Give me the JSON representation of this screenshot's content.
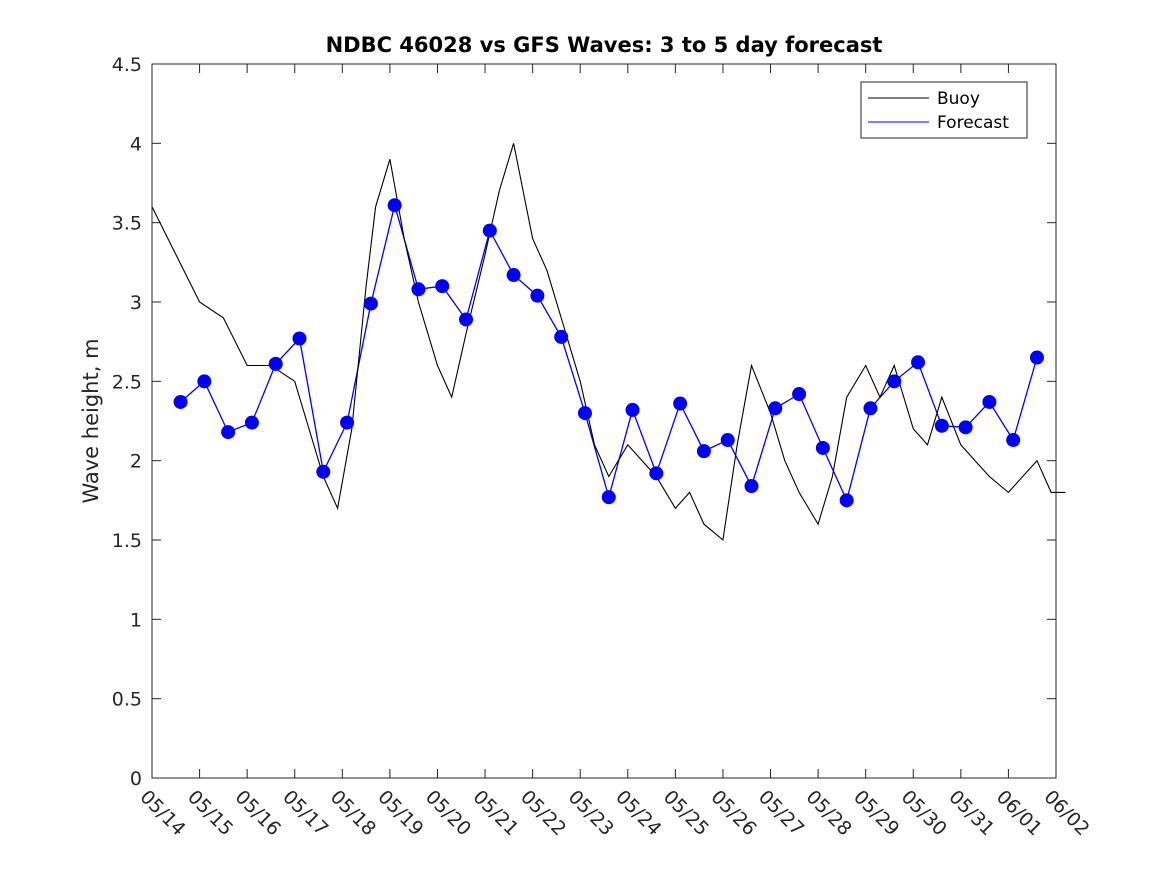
{
  "chart_data": {
    "type": "line",
    "title": "NDBC 46028 vs GFS Waves: 3 to 5 day forecast",
    "xlabel": "",
    "ylabel": "Wave height, m",
    "xlim": [
      "05/14",
      "06/02"
    ],
    "ylim": [
      0,
      4.5
    ],
    "yticks": [
      "0",
      "0.5",
      "1",
      "1.5",
      "2",
      "2.5",
      "3",
      "3.5",
      "4",
      "4.5"
    ],
    "xticks": [
      "05/14",
      "05/15",
      "05/16",
      "05/17",
      "05/18",
      "05/19",
      "05/20",
      "05/21",
      "05/22",
      "05/23",
      "05/24",
      "05/25",
      "05/26",
      "05/27",
      "05/28",
      "05/29",
      "05/30",
      "05/31",
      "06/01",
      "06/02"
    ],
    "grid": false,
    "legend_placement": "top-right",
    "legend": [
      "Buoy",
      "Forecast"
    ],
    "colors": {
      "buoy": "#000000",
      "forecast": "#0000ff",
      "axes": "#262626"
    },
    "series": [
      {
        "name": "Buoy",
        "x": [
          0,
          0.5,
          1,
          1.5,
          2,
          2.5,
          3,
          3.3,
          3.6,
          3.9,
          4.2,
          4.5,
          4.7,
          5,
          5.3,
          5.6,
          6,
          6.3,
          6.6,
          7,
          7.3,
          7.6,
          8,
          8.3,
          8.6,
          9,
          9.3,
          9.6,
          10,
          10.3,
          10.6,
          11,
          11.3,
          11.6,
          12,
          12.3,
          12.6,
          13,
          13.3,
          13.6,
          14,
          14.3,
          14.6,
          15,
          15.3,
          15.6,
          16,
          16.3,
          16.6,
          17,
          17.3,
          17.6,
          18,
          18.3,
          18.6,
          18.9,
          19.2
        ],
        "y": [
          3.6,
          3.3,
          3.0,
          2.9,
          2.6,
          2.6,
          2.5,
          2.2,
          1.9,
          1.7,
          2.2,
          3.1,
          3.6,
          3.9,
          3.4,
          3.0,
          2.6,
          2.4,
          2.8,
          3.3,
          3.7,
          4.0,
          3.4,
          3.2,
          2.9,
          2.5,
          2.1,
          1.9,
          2.1,
          2.0,
          1.9,
          1.7,
          1.8,
          1.6,
          1.5,
          2.1,
          2.6,
          2.3,
          2.0,
          1.8,
          1.6,
          1.9,
          2.4,
          2.6,
          2.4,
          2.6,
          2.2,
          2.1,
          2.4,
          2.1,
          2.0,
          1.9,
          1.8,
          1.9,
          2.0,
          1.8,
          1.8
        ]
      },
      {
        "name": "Forecast",
        "x": [
          0.6,
          1.1,
          1.6,
          2.1,
          2.6,
          3.1,
          3.6,
          4.1,
          4.6,
          5.1,
          5.6,
          6.1,
          6.6,
          7.1,
          7.6,
          8.1,
          8.6,
          9.1,
          9.6,
          10.1,
          10.6,
          11.1,
          11.6,
          12.1,
          12.6,
          13.1,
          13.6,
          14.1,
          14.6,
          15.1,
          15.6,
          16.1,
          16.6,
          17.1,
          17.6,
          18.1,
          18.6
        ],
        "y": [
          2.37,
          2.5,
          2.18,
          2.24,
          2.61,
          2.77,
          1.93,
          2.24,
          2.99,
          3.61,
          3.08,
          3.1,
          2.89,
          3.45,
          3.17,
          3.04,
          2.78,
          2.3,
          1.77,
          2.32,
          1.92,
          2.36,
          2.06,
          2.13,
          1.84,
          2.33,
          2.42,
          2.08,
          1.75,
          2.33,
          2.5,
          2.62,
          2.22,
          2.21,
          2.37,
          2.13,
          2.65
        ]
      }
    ]
  }
}
